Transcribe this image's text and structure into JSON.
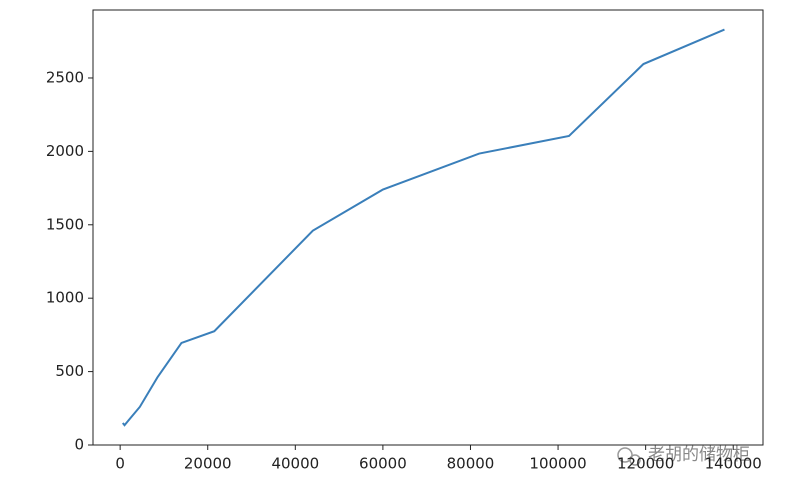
{
  "chart_data": {
    "type": "line",
    "x": [
      600,
      1000,
      4500,
      8500,
      14000,
      21500,
      44000,
      60000,
      82000,
      102500,
      119500,
      138000
    ],
    "series": [
      {
        "color": "#3a7fba",
        "values": [
          150,
          135,
          260,
          460,
          695,
          775,
          1460,
          1740,
          1985,
          2105,
          2595,
          2830
        ]
      }
    ],
    "xlim": [
      -6200,
      146800
    ],
    "ylim": [
      0,
      2963
    ],
    "xticks": [
      0,
      20000,
      40000,
      60000,
      80000,
      100000,
      120000,
      140000
    ],
    "yticks": [
      0,
      500,
      1000,
      1500,
      2000,
      2500
    ]
  },
  "watermark": "老胡的储物柜"
}
